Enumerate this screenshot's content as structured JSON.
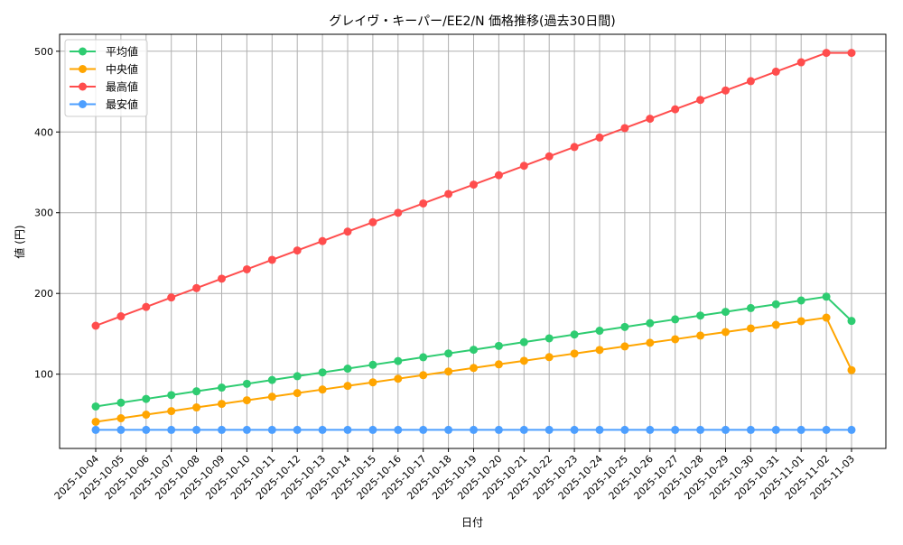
{
  "chart_data": {
    "type": "line",
    "title": "グレイヴ・キーパー/EE2/N 価格推移(過去30日間)",
    "xlabel": "日付",
    "ylabel": "値 (円)",
    "ylim": [
      8,
      521
    ],
    "yticks": [
      100,
      200,
      300,
      400,
      500
    ],
    "grid": true,
    "legend_position": "top-left",
    "x": [
      "2025-10-04",
      "2025-10-05",
      "2025-10-06",
      "2025-10-07",
      "2025-10-08",
      "2025-10-09",
      "2025-10-10",
      "2025-10-11",
      "2025-10-12",
      "2025-10-13",
      "2025-10-14",
      "2025-10-15",
      "2025-10-16",
      "2025-10-17",
      "2025-10-18",
      "2025-10-19",
      "2025-10-20",
      "2025-10-21",
      "2025-10-22",
      "2025-10-23",
      "2025-10-24",
      "2025-10-25",
      "2025-10-26",
      "2025-10-27",
      "2025-10-28",
      "2025-10-29",
      "2025-10-30",
      "2025-10-31",
      "2025-11-01",
      "2025-11-02",
      "2025-11-03"
    ],
    "series": [
      {
        "name": "平均値",
        "color": "#2ecc71",
        "values": [
          60,
          64.7,
          69.4,
          74.1,
          78.8,
          83.4,
          88.1,
          92.8,
          97.5,
          102.2,
          106.9,
          111.6,
          116.3,
          121,
          125.7,
          130.3,
          135,
          139.7,
          144.4,
          149.1,
          153.8,
          158.5,
          163.2,
          167.9,
          172.6,
          177.2,
          181.9,
          186.6,
          191.3,
          196,
          166
        ]
      },
      {
        "name": "中央値",
        "color": "#ffa500",
        "values": [
          41,
          45.4,
          49.9,
          54.3,
          58.8,
          63.2,
          67.7,
          72.1,
          76.6,
          81,
          85.5,
          89.9,
          94.4,
          98.8,
          103.3,
          107.7,
          112.2,
          116.6,
          121.1,
          125.5,
          130,
          134.4,
          138.9,
          143.3,
          147.8,
          152.2,
          156.7,
          161.1,
          165.6,
          170,
          105
        ]
      },
      {
        "name": "最高値",
        "color": "#ff4d4d",
        "values": [
          160,
          171.7,
          183.3,
          195,
          206.6,
          218.3,
          229.9,
          241.6,
          253.2,
          264.9,
          276.6,
          288.2,
          299.9,
          311.5,
          323.2,
          334.8,
          346.5,
          358.1,
          369.8,
          381.4,
          393.1,
          404.8,
          416.4,
          428.1,
          439.7,
          451.4,
          463,
          474.7,
          486.3,
          498,
          498
        ]
      },
      {
        "name": "最安値",
        "color": "#4d9fff",
        "values": [
          31,
          31,
          31,
          31,
          31,
          31,
          31,
          31,
          31,
          31,
          31,
          31,
          31,
          31,
          31,
          31,
          31,
          31,
          31,
          31,
          31,
          31,
          31,
          31,
          31,
          31,
          31,
          31,
          31,
          31,
          31
        ]
      }
    ]
  }
}
